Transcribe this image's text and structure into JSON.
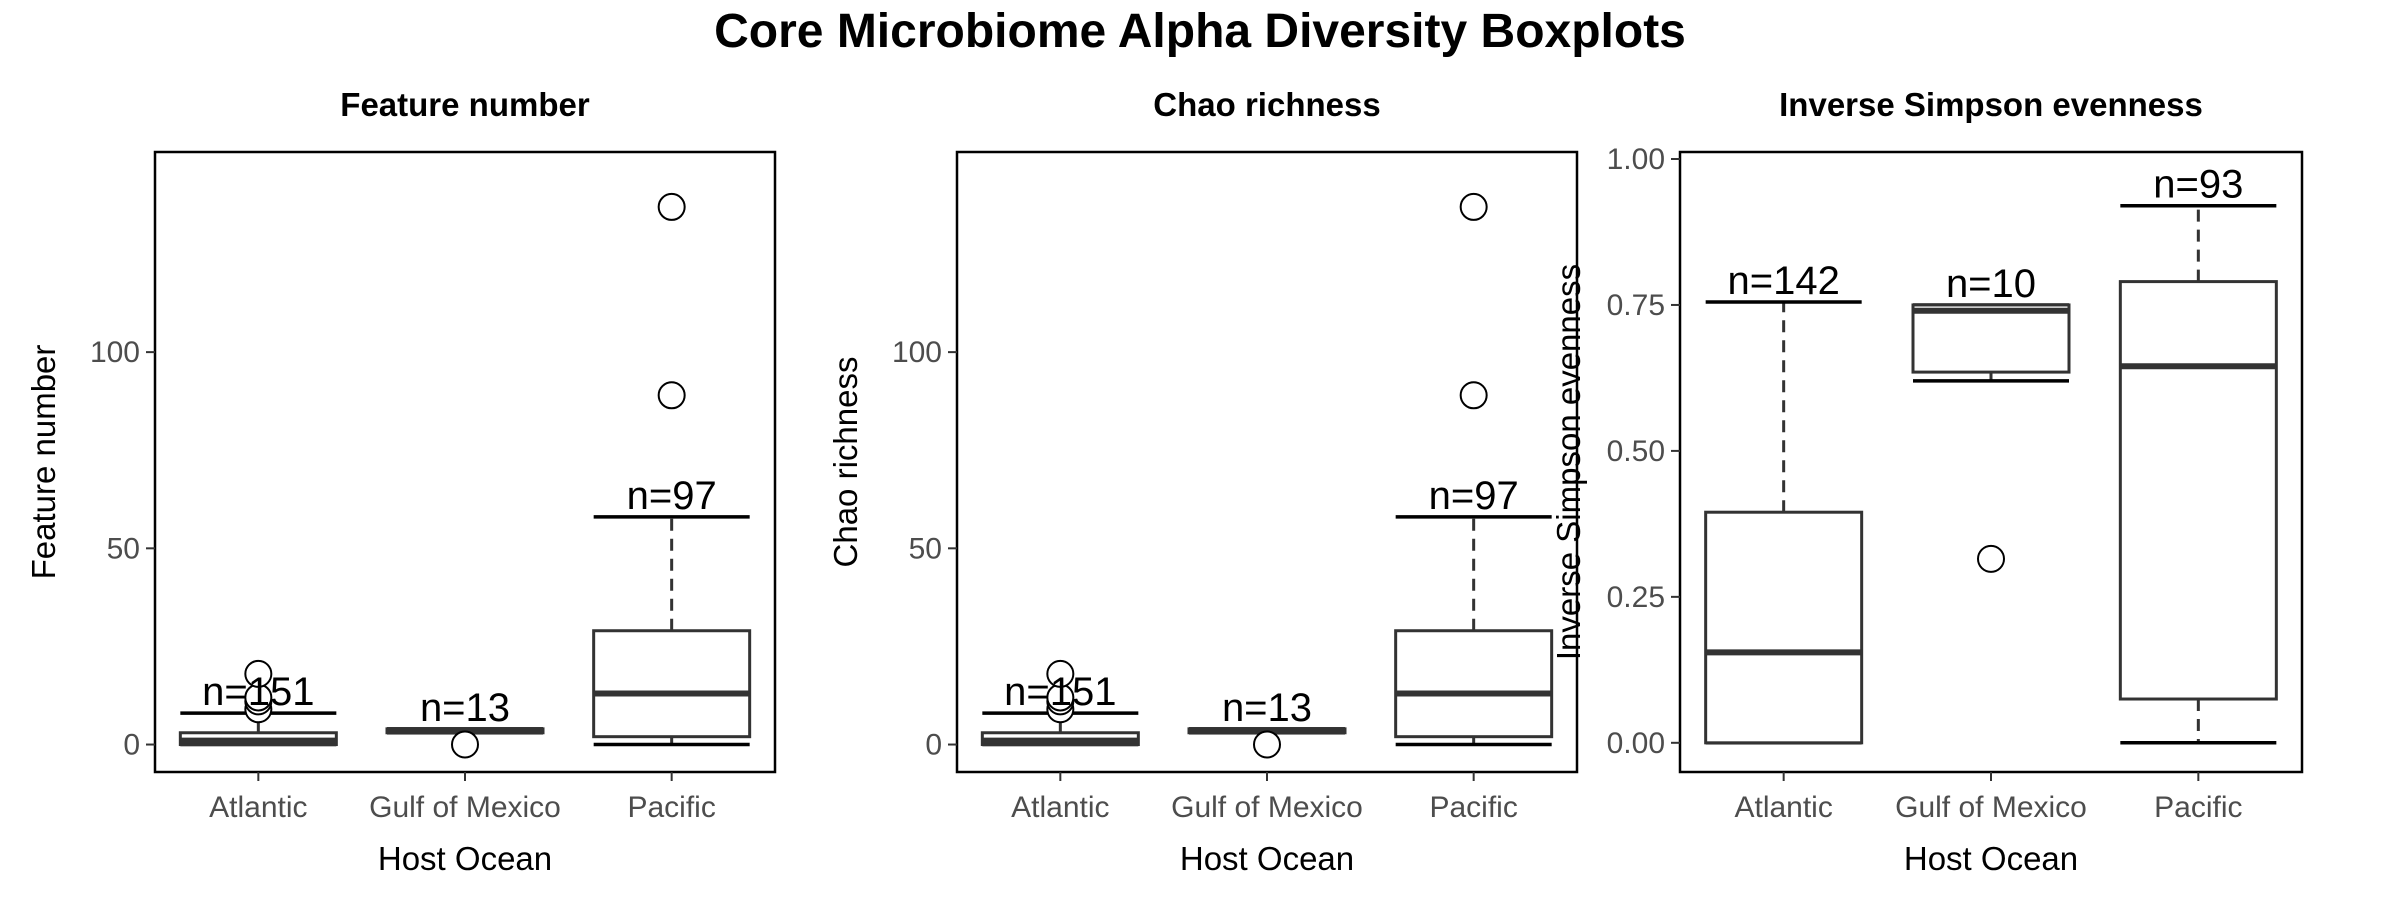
{
  "title": "Core Microbiome Alpha Diversity Boxplots",
  "chart_data": [
    {
      "type": "box",
      "title": "Feature number",
      "xlabel": "Host Ocean",
      "ylabel": "Feature number",
      "categories": [
        "Atlantic",
        "Gulf of Mexico",
        "Pacific"
      ],
      "ylim": [
        -7,
        151
      ],
      "yticks": [
        0,
        50,
        100
      ],
      "yticklabels": [
        "0",
        "50",
        "100"
      ],
      "grid": false,
      "boxes": [
        {
          "category": "Atlantic",
          "min": 0,
          "q1": 0,
          "median": 1,
          "q3": 3,
          "max": 8,
          "outliers": [
            9,
            11,
            12,
            18
          ],
          "n_label": "n=151"
        },
        {
          "category": "Gulf of Mexico",
          "min": 3,
          "q1": 3,
          "median": 3.5,
          "q3": 4,
          "max": 4,
          "outliers": [
            0
          ],
          "n_label": "n=13"
        },
        {
          "category": "Pacific",
          "min": 0,
          "q1": 2,
          "median": 13,
          "q3": 29,
          "max": 58,
          "outliers": [
            89,
            137
          ],
          "n_label": "n=97"
        }
      ]
    },
    {
      "type": "box",
      "title": "Chao richness",
      "xlabel": "Host Ocean",
      "ylabel": "Chao richness",
      "categories": [
        "Atlantic",
        "Gulf of Mexico",
        "Pacific"
      ],
      "ylim": [
        -7,
        151
      ],
      "yticks": [
        0,
        50,
        100
      ],
      "yticklabels": [
        "0",
        "50",
        "100"
      ],
      "grid": false,
      "boxes": [
        {
          "category": "Atlantic",
          "min": 0,
          "q1": 0,
          "median": 1,
          "q3": 3,
          "max": 8,
          "outliers": [
            9,
            11,
            12,
            18
          ],
          "n_label": "n=151"
        },
        {
          "category": "Gulf of Mexico",
          "min": 3,
          "q1": 3,
          "median": 3.5,
          "q3": 4,
          "max": 4,
          "outliers": [
            0
          ],
          "n_label": "n=13"
        },
        {
          "category": "Pacific",
          "min": 0,
          "q1": 2,
          "median": 13,
          "q3": 29,
          "max": 58,
          "outliers": [
            89,
            137
          ],
          "n_label": "n=97"
        }
      ]
    },
    {
      "type": "box",
      "title": "Inverse Simpson evenness",
      "xlabel": "Host Ocean",
      "ylabel": "Inverse Simpson evenness",
      "categories": [
        "Atlantic",
        "Gulf of Mexico",
        "Pacific"
      ],
      "ylim": [
        -0.05,
        1.012
      ],
      "yticks": [
        0,
        0.25,
        0.5,
        0.75,
        1.0
      ],
      "yticklabels": [
        "0.00",
        "0.25",
        "0.50",
        "0.75",
        "1.00"
      ],
      "grid": false,
      "boxes": [
        {
          "category": "Atlantic",
          "min": 0,
          "q1": 0,
          "median": 0.155,
          "q3": 0.395,
          "max": 0.755,
          "outliers": [],
          "n_label": "n=142"
        },
        {
          "category": "Gulf of Mexico",
          "min": 0.62,
          "q1": 0.635,
          "median": 0.74,
          "q3": 0.75,
          "max": 0.75,
          "outliers": [
            0.315
          ],
          "n_label": "n=10"
        },
        {
          "category": "Pacific",
          "min": 0,
          "q1": 0.075,
          "median": 0.645,
          "q3": 0.79,
          "max": 0.92,
          "outliers": [],
          "n_label": "n=93"
        }
      ]
    }
  ]
}
